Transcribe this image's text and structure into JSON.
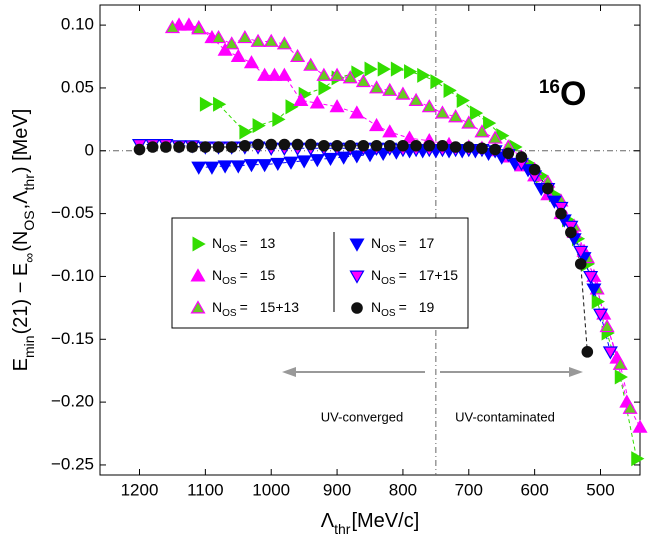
{
  "chart_data": {
    "type": "scatter",
    "xlabel_parts": [
      "Λ",
      "thr",
      "[MeV/c]"
    ],
    "ylabel_parts": [
      "E",
      "min",
      "(21) − E",
      "∞",
      "(N",
      "OS",
      ",Λ",
      "thr",
      ") [MeV]"
    ],
    "isotope": {
      "mass": "16",
      "symbol": "O"
    },
    "regions": [
      "UV-converged",
      "UV-contaminated"
    ],
    "legend_prefix": [
      "N",
      "OS",
      "="
    ],
    "xlim": [
      1260,
      440
    ],
    "ylim": [
      -0.258,
      0.116
    ],
    "xticks": [
      1200,
      1100,
      1000,
      900,
      800,
      700,
      600,
      500
    ],
    "yticks": [
      {
        "value": 0.1,
        "label": "0.10"
      },
      0.05,
      0,
      {
        "value": -0.05,
        "label": "−0.05"
      },
      {
        "value": -0.1,
        "label": "−0.10"
      },
      {
        "value": -0.15,
        "label": "−0.15"
      },
      {
        "value": -0.2,
        "label": "−0.20"
      },
      {
        "value": -0.25,
        "label": "−0.25"
      }
    ],
    "vline": 750,
    "hline": 0,
    "series": [
      {
        "name": "13",
        "marker": "triangle-right",
        "color": "#33dd00",
        "edgecolor": "#33dd00",
        "x": [
          1100,
          1080,
          1040,
          1020,
          990,
          970,
          950,
          920,
          900,
          870,
          850,
          830,
          810,
          790,
          770,
          750,
          730,
          710,
          690,
          670,
          650,
          630,
          610,
          590,
          570,
          550,
          535,
          520,
          505,
          490,
          470,
          445
        ],
        "values": [
          0.037,
          0.037,
          0.015,
          0.02,
          0.025,
          0.035,
          0.045,
          0.05,
          0.058,
          0.062,
          0.065,
          0.065,
          0.065,
          0.063,
          0.06,
          0.055,
          0.048,
          0.04,
          0.03,
          0.022,
          0.012,
          0.003,
          -0.01,
          -0.02,
          -0.035,
          -0.055,
          -0.07,
          -0.09,
          -0.12,
          -0.145,
          -0.18,
          -0.245
        ]
      },
      {
        "name": "15",
        "marker": "triangle-up",
        "color": "#ff00ff",
        "edgecolor": "#ff00ff",
        "x": [
          1140,
          1125,
          1110,
          1090,
          1070,
          1050,
          1030,
          1010,
          995,
          980,
          955,
          930,
          900,
          870,
          840,
          820,
          790,
          760,
          730,
          700,
          680,
          660,
          640,
          620,
          600,
          580,
          560,
          540,
          525,
          510,
          495,
          475,
          460,
          440
        ],
        "values": [
          0.1,
          0.1,
          0.098,
          0.09,
          0.08,
          0.075,
          0.07,
          0.06,
          0.06,
          0.06,
          0.04,
          0.038,
          0.035,
          0.03,
          0.02,
          0.015,
          0.01,
          0.008,
          0.005,
          0.003,
          0.002,
          0,
          -0.005,
          -0.012,
          -0.02,
          -0.035,
          -0.05,
          -0.065,
          -0.08,
          -0.1,
          -0.13,
          -0.165,
          -0.2,
          -0.22
        ]
      },
      {
        "name": "15+13",
        "marker": "triangle-up",
        "color": "#66cc22",
        "edgecolor": "#ff00ff",
        "x": [
          1150,
          1110,
          1080,
          1060,
          1040,
          1020,
          1000,
          980,
          960,
          940,
          920,
          900,
          880,
          860,
          840,
          820,
          800,
          780,
          760,
          740,
          720,
          700,
          680,
          660,
          640,
          620,
          600,
          580,
          560,
          540,
          520,
          505,
          490,
          470,
          455
        ],
        "values": [
          0.098,
          0.097,
          0.09,
          0.085,
          0.09,
          0.087,
          0.087,
          0.085,
          0.075,
          0.068,
          0.06,
          0.06,
          0.058,
          0.055,
          0.05,
          0.048,
          0.045,
          0.04,
          0.035,
          0.03,
          0.027,
          0.022,
          0.015,
          0.01,
          0.003,
          -0.005,
          -0.015,
          -0.025,
          -0.04,
          -0.06,
          -0.085,
          -0.11,
          -0.14,
          -0.17,
          -0.205
        ]
      },
      {
        "name": "17",
        "marker": "triangle-down",
        "color": "#0000ff",
        "edgecolor": "#0000ff",
        "x": [
          1110,
          1090,
          1070,
          1050,
          1030,
          1010,
          990,
          970,
          950,
          930,
          910,
          890,
          870,
          850,
          830,
          810,
          790,
          770,
          750,
          730,
          710,
          690,
          670,
          650,
          630,
          610,
          590,
          570,
          555,
          540,
          525,
          510
        ],
        "values": [
          -0.013,
          -0.013,
          -0.012,
          -0.012,
          -0.011,
          -0.011,
          -0.01,
          -0.009,
          -0.008,
          -0.007,
          -0.006,
          -0.005,
          -0.004,
          -0.003,
          -0.002,
          -0.001,
          0,
          0,
          0,
          0,
          0,
          0,
          -0.002,
          -0.005,
          -0.01,
          -0.015,
          -0.03,
          -0.04,
          -0.055,
          -0.07,
          -0.085,
          -0.11
        ]
      },
      {
        "name": "17+15",
        "marker": "triangle-down",
        "color": "#ff00ff",
        "edgecolor": "#0000ff",
        "x": [
          1200,
          1180,
          1160,
          1140,
          1120,
          1100,
          1080,
          1060,
          1040,
          1020,
          1000,
          980,
          960,
          940,
          920,
          900,
          880,
          860,
          840,
          820,
          800,
          780,
          760,
          740,
          720,
          700,
          680,
          660,
          640,
          620,
          600,
          580,
          560,
          545,
          530,
          515,
          500,
          485
        ],
        "values": [
          0.005,
          0.005,
          0.005,
          0.004,
          0.004,
          0.003,
          0.003,
          0.003,
          0.003,
          0.003,
          0.002,
          0.002,
          0.002,
          0.002,
          0.002,
          0.002,
          0.002,
          0.002,
          0.002,
          0.002,
          0.001,
          0.001,
          0.001,
          0.001,
          0.001,
          0.001,
          0.001,
          0,
          -0.003,
          -0.01,
          -0.02,
          -0.03,
          -0.045,
          -0.06,
          -0.08,
          -0.1,
          -0.13,
          -0.16
        ]
      },
      {
        "name": "19",
        "marker": "circle",
        "color": "#111111",
        "edgecolor": "#111111",
        "x": [
          1200,
          1180,
          1160,
          1140,
          1120,
          1100,
          1080,
          1060,
          1040,
          1020,
          1000,
          980,
          960,
          940,
          920,
          900,
          880,
          860,
          840,
          820,
          800,
          780,
          760,
          740,
          720,
          700,
          680,
          660,
          640,
          620,
          600,
          580,
          560,
          545,
          530,
          520
        ],
        "values": [
          0.001,
          0.003,
          0.003,
          0.003,
          0.003,
          0.003,
          0.003,
          0.003,
          0.004,
          0.005,
          0.005,
          0.005,
          0.005,
          0.005,
          0.004,
          0.004,
          0.004,
          0.004,
          0.004,
          0.004,
          0.004,
          0.004,
          0.004,
          0.004,
          0.003,
          0.003,
          0.002,
          0.001,
          -0.002,
          -0.005,
          -0.015,
          -0.03,
          -0.05,
          -0.065,
          -0.09,
          -0.16
        ]
      }
    ]
  }
}
